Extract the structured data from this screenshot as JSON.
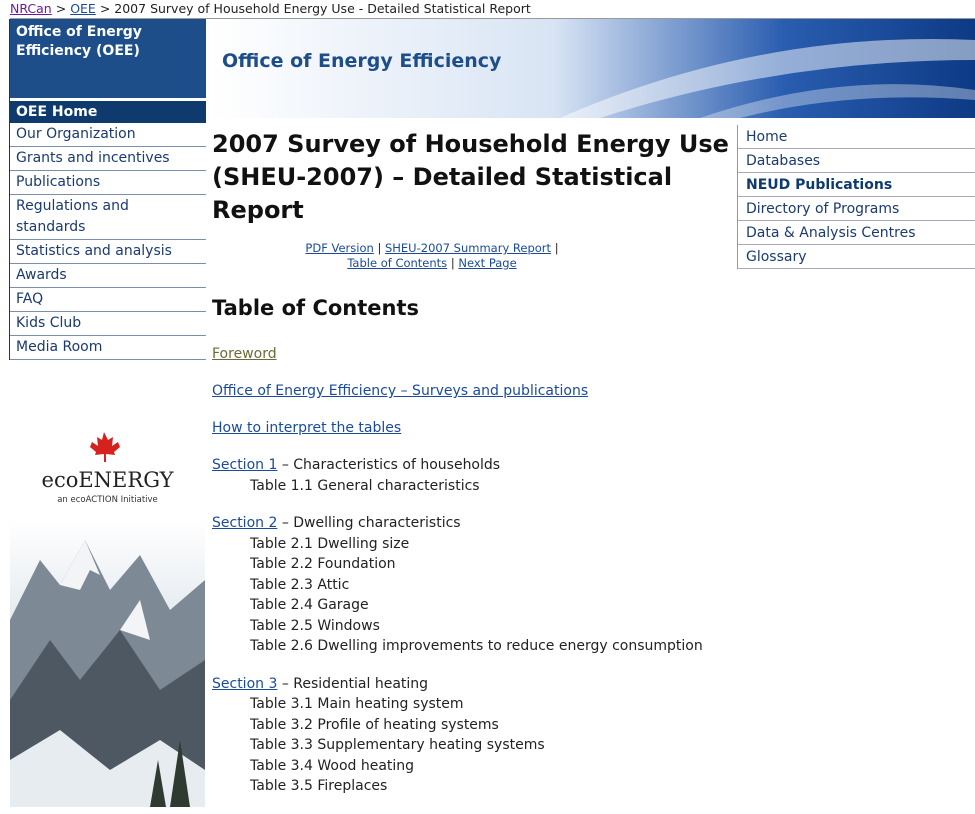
{
  "breadcrumb": {
    "links": [
      "NRCan",
      "OEE"
    ],
    "separator": ">",
    "current": "2007 Survey of Household Energy Use - Detailed Statistical Report"
  },
  "left_nav": {
    "header": "Office of Energy Efficiency (OEE)",
    "home": "OEE Home",
    "items": [
      "Our Organization",
      "Grants and incentives",
      "Publications",
      "Regulations and standards",
      "Statistics and analysis",
      "Awards",
      "FAQ",
      "Kids Club",
      "Media Room"
    ]
  },
  "logo": {
    "name": "ecoENERGY",
    "tagline": "an ecoACTION Initiative"
  },
  "banner": {
    "title": "Office of Energy Efficiency"
  },
  "right_nav": {
    "items": [
      "Home",
      "Databases",
      "NEUD Publications",
      "Directory of Programs",
      "Data & Analysis Centres",
      "Glossary"
    ],
    "active": 2
  },
  "content": {
    "title": "2007 Survey of Household Energy Use (SHEU-2007) – Detailed Statistical Report",
    "links": [
      "PDF Version",
      "SHEU-2007 Summary Report",
      "Table of Contents",
      "Next Page"
    ],
    "link_separator": "|",
    "heading": "Table of Contents",
    "intro_links": [
      "Foreword",
      "Office of Energy Efficiency – Surveys and publications",
      "How to interpret the tables"
    ],
    "sections": [
      {
        "link": "Section 1",
        "title": "– Characteristics of households",
        "tables": [
          "Table 1.1 General characteristics"
        ]
      },
      {
        "link": "Section 2",
        "title": "– Dwelling characteristics",
        "tables": [
          "Table 2.1 Dwelling size",
          "Table 2.2 Foundation",
          "Table 2.3 Attic",
          "Table 2.4 Garage",
          "Table 2.5 Windows",
          "Table 2.6 Dwelling improvements to reduce energy consumption"
        ]
      },
      {
        "link": "Section 3",
        "title": "– Residential heating",
        "tables": [
          "Table 3.1 Main heating system",
          "Table 3.2 Profile of heating systems",
          "Table 3.3 Supplementary heating systems",
          "Table 3.4 Wood heating",
          "Table 3.5 Fireplaces"
        ]
      }
    ]
  }
}
